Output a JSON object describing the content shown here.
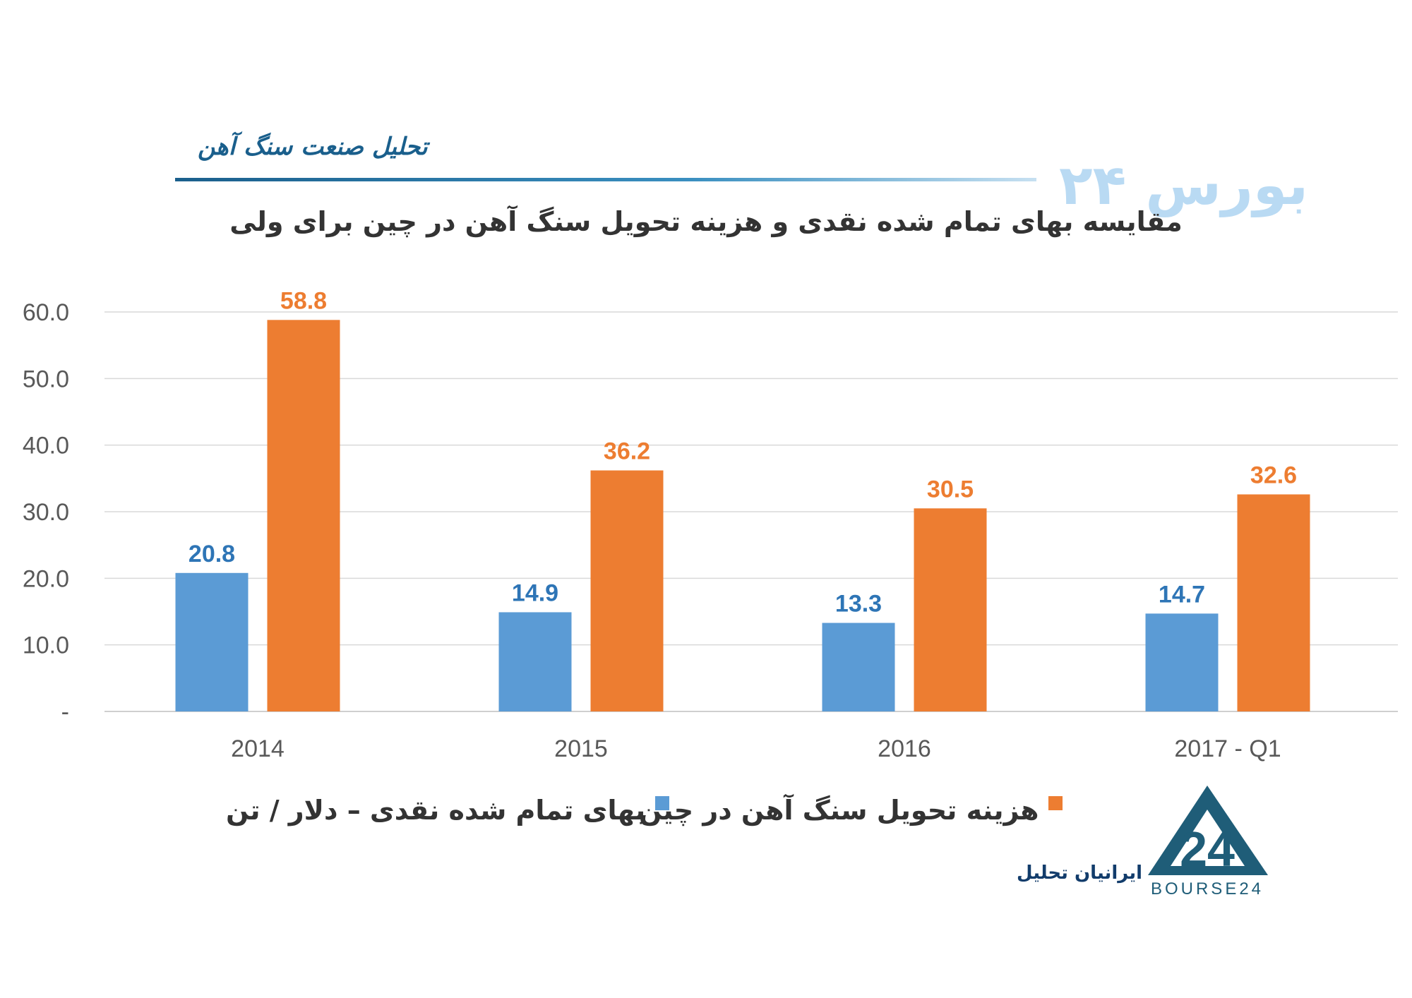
{
  "header": {
    "section_title": "تحلیل صنعت سنگ آهن",
    "watermark": "بورس ۲۴"
  },
  "chart_data": {
    "type": "bar",
    "title": "مقایسه بهای تمام شده نقدی و هزینه تحویل سنگ آهن در چین برای ولی",
    "categories": [
      "2014",
      "2015",
      "2016",
      "2017 - Q1"
    ],
    "series": [
      {
        "name": "بهای تمام شده نقدی – دلار / تن",
        "color": "#5b9bd5",
        "label_color": "#2e75b6",
        "values": [
          20.8,
          14.9,
          13.3,
          14.7
        ]
      },
      {
        "name": "هزینه تحویل سنگ آهن در چین",
        "color": "#ed7d31",
        "label_color": "#ed7d31",
        "values": [
          58.8,
          36.2,
          30.5,
          32.6
        ]
      }
    ],
    "y_ticks": [
      "-",
      "10.0",
      "20.0",
      "30.0",
      "40.0",
      "50.0",
      "60.0"
    ],
    "ylim": [
      0,
      60
    ],
    "grid": true,
    "legend_position": "bottom"
  },
  "footer": {
    "brand_text": "ایرانیان تحلیل",
    "logo_text": "BOURSE24",
    "logo_mark": "24"
  },
  "colors": {
    "accent": "#1a5f8c",
    "series_blue": "#5b9bd5",
    "series_orange": "#ed7d31",
    "grid": "#d9d9d9"
  }
}
